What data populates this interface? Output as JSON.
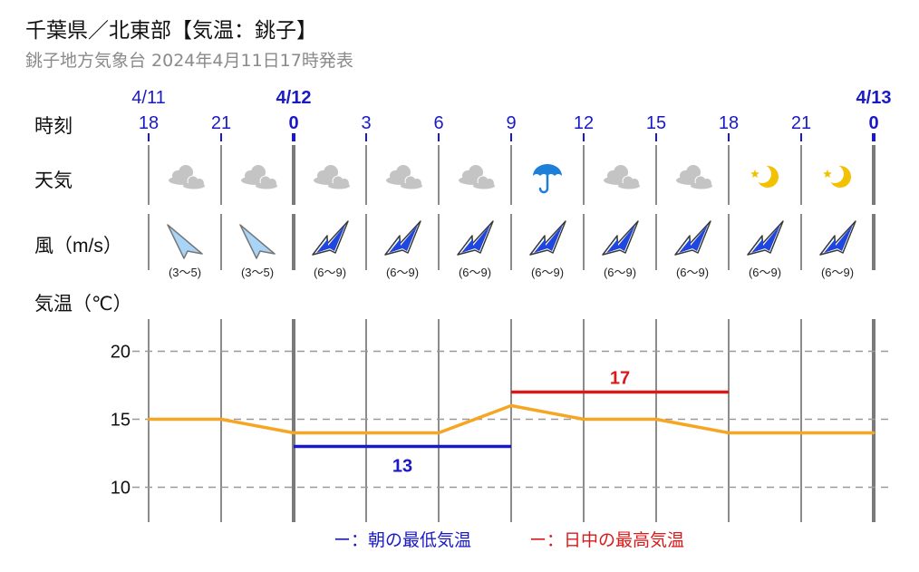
{
  "title": "千葉県／北東部【気温：銚子】",
  "subtitle": "銚子地方気象台 2024年4月11日17時発表",
  "row_labels": {
    "time": "時刻",
    "weather": "天気",
    "wind": "風（m/s）",
    "temp": "気温（℃）"
  },
  "dates": [
    {
      "label": "4/11",
      "hour_index": 0,
      "bold": false
    },
    {
      "label": "4/12",
      "hour_index": 2,
      "bold": true
    },
    {
      "label": "4/13",
      "hour_index": 10,
      "bold": true
    }
  ],
  "hours": [
    "18",
    "21",
    "0",
    "3",
    "6",
    "9",
    "12",
    "15",
    "18",
    "21",
    "0"
  ],
  "bold_hours": [
    2,
    10
  ],
  "weather_icons": [
    "cloud-icon",
    "cloud-icon",
    "cloud-icon",
    "cloud-icon",
    "cloud-icon",
    "umbrella-icon",
    "cloud-icon",
    "cloud-icon",
    "moon-star-icon",
    "moon-star-icon"
  ],
  "wind": [
    {
      "text": "(3～5)",
      "strong": false
    },
    {
      "text": "(3～5)",
      "strong": false
    },
    {
      "text": "(6～9)",
      "strong": true
    },
    {
      "text": "(6～9)",
      "strong": true
    },
    {
      "text": "(6～9)",
      "strong": true
    },
    {
      "text": "(6～9)",
      "strong": true
    },
    {
      "text": "(6～9)",
      "strong": true
    },
    {
      "text": "(6～9)",
      "strong": true
    },
    {
      "text": "(6～9)",
      "strong": true
    },
    {
      "text": "(6～9)",
      "strong": true
    }
  ],
  "colors": {
    "temp_line": "#f5a623",
    "min_line": "#1a1ac4",
    "max_line": "#d81a1a",
    "time_text": "#1a1ac4",
    "grid": "#999999",
    "wind_strong": "#1f47e0",
    "wind_light": "#a8d4f7",
    "cloud": "#c4c4c4",
    "umbrella": "#1e7fd8",
    "moon": "#f2c200"
  },
  "chart_data": {
    "type": "line",
    "x": [
      "18",
      "21",
      "0",
      "3",
      "6",
      "9",
      "12",
      "15",
      "18",
      "21",
      "0"
    ],
    "series": [
      {
        "values": [
          15,
          15,
          14,
          14,
          14,
          16,
          15,
          15,
          14,
          14,
          14
        ]
      }
    ],
    "min_temp": {
      "value": 13,
      "label": "13",
      "from_index": 2,
      "to_index": 5
    },
    "max_temp": {
      "value": 17,
      "label": "17",
      "from_index": 5,
      "to_index": 8
    },
    "yticks": [
      10,
      15,
      20
    ],
    "ylim": [
      7.5,
      22.5
    ],
    "grid": true,
    "legend": {
      "min_label": "ー：朝の最低気温",
      "max_label": "ー：日中の最高気温",
      "position": "bottom"
    }
  }
}
